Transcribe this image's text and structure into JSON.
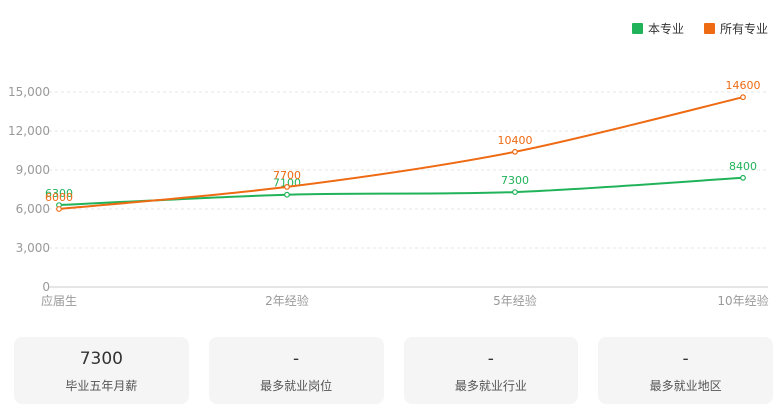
{
  "chart_data": {
    "type": "line",
    "categories": [
      "应届生",
      "2年经验",
      "5年经验",
      "10年经验"
    ],
    "series": [
      {
        "name": "本专业",
        "values": [
          6300,
          7100,
          7300,
          8400
        ],
        "color": "#21b35a"
      },
      {
        "name": "所有专业",
        "values": [
          6000,
          7700,
          10400,
          14600
        ],
        "color": "#ee6a13"
      }
    ],
    "y_ticks": [
      "0",
      "3,000",
      "6,000",
      "9,000",
      "12,000",
      "15,000"
    ],
    "ylim": [
      0,
      15000
    ],
    "grid": true,
    "legend_position": "top-right"
  },
  "stats": [
    {
      "value": "7300",
      "label": "毕业五年月薪"
    },
    {
      "value": "-",
      "label": "最多就业岗位"
    },
    {
      "value": "-",
      "label": "最多就业行业"
    },
    {
      "value": "-",
      "label": "最多就业地区"
    }
  ]
}
